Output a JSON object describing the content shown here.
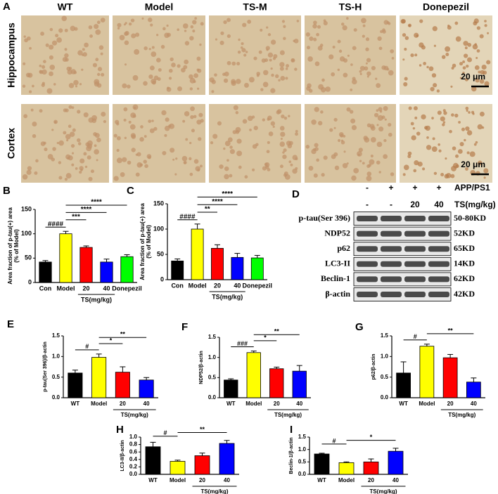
{
  "micrographs": {
    "label": "A",
    "columns": [
      "WT",
      "Model",
      "TS-M",
      "TS-H",
      "Donepezil"
    ],
    "rows": [
      "Hippocampus",
      "Cortex"
    ],
    "scale_bar": "20 μm"
  },
  "blot": {
    "label": "D",
    "conditions": [
      {
        "name": "APP/PS1",
        "lanes": [
          "-",
          "+",
          "+",
          "+"
        ]
      },
      {
        "name": "TS(mg/kg)",
        "lanes": [
          "-",
          "-",
          "20",
          "40"
        ]
      }
    ],
    "bands": [
      {
        "name": "p-tau(Ser 396)",
        "size": "50-80KD"
      },
      {
        "name": "NDP52",
        "size": "52KD"
      },
      {
        "name": "p62",
        "size": "65KD"
      },
      {
        "name": "LC3-II",
        "size": "14KD"
      },
      {
        "name": "Beclin-1",
        "size": "62KD"
      },
      {
        "name": "β-actin",
        "size": "42KD"
      }
    ]
  },
  "chart_data": [
    {
      "type": "bar",
      "label": "B",
      "ylabel": "Area fraction of p-tau(+) area\n(% of Model)",
      "categories": [
        "Con",
        "Model",
        "20",
        "40",
        "Donepezil"
      ],
      "group_label": "TS(mg/kg)",
      "group": [
        2,
        3
      ],
      "values": [
        42,
        100,
        72,
        42,
        53
      ],
      "errors": [
        3,
        5,
        3,
        6,
        4
      ],
      "colors": [
        "#000000",
        "#ffff00",
        "#ff0000",
        "#0000ff",
        "#00ff00"
      ],
      "ylim": [
        0,
        150
      ],
      "yticks": [
        0,
        50,
        100,
        150
      ],
      "significance": [
        {
          "pair": [
            0,
            1
          ],
          "label": "####"
        },
        {
          "pair": [
            1,
            2
          ],
          "label": "***"
        },
        {
          "pair": [
            1,
            3
          ],
          "label": "****"
        },
        {
          "pair": [
            1,
            4
          ],
          "label": "****"
        }
      ]
    },
    {
      "type": "bar",
      "label": "C",
      "ylabel": "Area fraction of p-tau(+) area\n(% of Model)",
      "categories": [
        "Con",
        "Model",
        "20",
        "40",
        "Donepezil"
      ],
      "group_label": "TS(mg/kg)",
      "group": [
        2,
        3
      ],
      "values": [
        37,
        100,
        62,
        44,
        43
      ],
      "errors": [
        4,
        10,
        7,
        8,
        5
      ],
      "colors": [
        "#000000",
        "#ffff00",
        "#ff0000",
        "#0000ff",
        "#00ff00"
      ],
      "ylim": [
        0,
        150
      ],
      "yticks": [
        0,
        50,
        100,
        150
      ],
      "significance": [
        {
          "pair": [
            0,
            1
          ],
          "label": "####"
        },
        {
          "pair": [
            1,
            2
          ],
          "label": "**"
        },
        {
          "pair": [
            1,
            3
          ],
          "label": "****"
        },
        {
          "pair": [
            1,
            4
          ],
          "label": "****"
        }
      ]
    },
    {
      "type": "bar",
      "label": "E",
      "ylabel": "p-tau(Ser 396)/β-actin",
      "categories": [
        "WT",
        "Model",
        "20",
        "40"
      ],
      "group_label": "TS(mg/kg)",
      "group": [
        2,
        3
      ],
      "values": [
        0.6,
        0.98,
        0.62,
        0.43
      ],
      "errors": [
        0.07,
        0.08,
        0.13,
        0.06
      ],
      "colors": [
        "#000000",
        "#ffff00",
        "#ff0000",
        "#0000ff"
      ],
      "ylim": [
        0,
        1.5
      ],
      "yticks": [
        {
          "value": 0,
          "label": "0.0"
        },
        0.5,
        {
          "value": 1,
          "label": "1.0"
        },
        1.5
      ],
      "significance": [
        {
          "pair": [
            0,
            1
          ],
          "label": "#"
        },
        {
          "pair": [
            1,
            2
          ],
          "label": "*"
        },
        {
          "pair": [
            1,
            3
          ],
          "label": "**"
        }
      ]
    },
    {
      "type": "bar",
      "label": "F",
      "ylabel": "NDP52/β-actin",
      "categories": [
        "WT",
        "Model",
        "20",
        "40"
      ],
      "group_label": "TS(mg/kg)",
      "group": [
        2,
        3
      ],
      "values": [
        0.44,
        1.12,
        0.72,
        0.66
      ],
      "errors": [
        0.03,
        0.04,
        0.04,
        0.14
      ],
      "colors": [
        "#000000",
        "#ffff00",
        "#ff0000",
        "#0000ff"
      ],
      "ylim": [
        0,
        1.5
      ],
      "yticks": [
        {
          "value": 0,
          "label": "0.0"
        },
        0.5,
        {
          "value": 1,
          "label": "1.0"
        },
        1.5
      ],
      "significance": [
        {
          "pair": [
            0,
            1
          ],
          "label": "###"
        },
        {
          "pair": [
            1,
            2
          ],
          "label": "*"
        },
        {
          "pair": [
            1,
            3
          ],
          "label": "**"
        }
      ]
    },
    {
      "type": "bar",
      "label": "G",
      "ylabel": "p62/β-actin",
      "categories": [
        "WT",
        "Model",
        "20",
        "40"
      ],
      "group_label": "TS(mg/kg)",
      "group": [
        2,
        3
      ],
      "values": [
        0.6,
        1.25,
        0.97,
        0.38
      ],
      "errors": [
        0.27,
        0.05,
        0.08,
        0.1
      ],
      "colors": [
        "#000000",
        "#ffff00",
        "#ff0000",
        "#0000ff"
      ],
      "ylim": [
        0,
        1.5
      ],
      "yticks": [
        {
          "value": 0,
          "label": "0.0"
        },
        0.5,
        {
          "value": 1,
          "label": "1.0"
        },
        1.5
      ],
      "significance": [
        {
          "pair": [
            0,
            1
          ],
          "label": "#"
        },
        {
          "pair": [
            1,
            3
          ],
          "label": "**"
        }
      ]
    },
    {
      "type": "bar",
      "label": "H",
      "ylabel": "LC3-II/β-actin",
      "categories": [
        "WT",
        "Model",
        "20",
        "40"
      ],
      "group_label": "TS(mg/kg)",
      "group": [
        2,
        3
      ],
      "values": [
        0.74,
        0.35,
        0.5,
        0.83
      ],
      "errors": [
        0.12,
        0.03,
        0.07,
        0.08
      ],
      "colors": [
        "#000000",
        "#ffff00",
        "#ff0000",
        "#0000ff"
      ],
      "ylim": [
        0,
        1
      ],
      "yticks": [
        {
          "value": 0,
          "label": "0.0"
        },
        0.2,
        0.4,
        0.6,
        0.8,
        {
          "value": 1,
          "label": "1.0"
        }
      ],
      "significance": [
        {
          "pair": [
            0,
            1
          ],
          "label": "#"
        },
        {
          "pair": [
            1,
            3
          ],
          "label": "**"
        }
      ]
    },
    {
      "type": "bar",
      "label": "I",
      "ylabel": "Beclin-1/β-actin",
      "categories": [
        "WT",
        "Model",
        "20",
        "40"
      ],
      "group_label": "TS(mg/kg)",
      "group": [
        2,
        3
      ],
      "values": [
        0.82,
        0.47,
        0.5,
        0.93
      ],
      "errors": [
        0.03,
        0.03,
        0.12,
        0.12
      ],
      "colors": [
        "#000000",
        "#ffff00",
        "#ff0000",
        "#0000ff"
      ],
      "ylim": [
        0,
        1.5
      ],
      "yticks": [
        {
          "value": 0,
          "label": "0.0"
        },
        0.5,
        {
          "value": 1,
          "label": "1.0"
        },
        1.5
      ],
      "significance": [
        {
          "pair": [
            0,
            1
          ],
          "label": "#"
        },
        {
          "pair": [
            1,
            3
          ],
          "label": "*"
        }
      ]
    }
  ]
}
